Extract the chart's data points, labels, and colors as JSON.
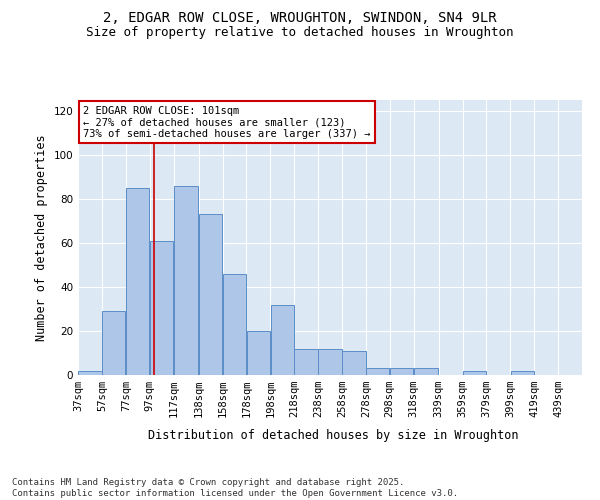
{
  "title_line1": "2, EDGAR ROW CLOSE, WROUGHTON, SWINDON, SN4 9LR",
  "title_line2": "Size of property relative to detached houses in Wroughton",
  "xlabel": "Distribution of detached houses by size in Wroughton",
  "ylabel": "Number of detached properties",
  "bar_left_edges": [
    37,
    57,
    77,
    97,
    117,
    138,
    158,
    178,
    198,
    218,
    238,
    258,
    278,
    298,
    318,
    339,
    359,
    379,
    399,
    419
  ],
  "bar_widths": [
    20,
    20,
    20,
    20,
    21,
    20,
    20,
    20,
    20,
    20,
    20,
    20,
    20,
    20,
    21,
    20,
    20,
    20,
    20,
    20
  ],
  "bar_heights": [
    2,
    29,
    85,
    61,
    86,
    73,
    46,
    20,
    32,
    12,
    12,
    11,
    3,
    3,
    3,
    0,
    2,
    0,
    2,
    0
  ],
  "bar_color": "#aec6e8",
  "bar_edgecolor": "#5b8dc8",
  "x_tick_labels": [
    "37sqm",
    "57sqm",
    "77sqm",
    "97sqm",
    "117sqm",
    "138sqm",
    "158sqm",
    "178sqm",
    "198sqm",
    "218sqm",
    "238sqm",
    "258sqm",
    "278sqm",
    "298sqm",
    "318sqm",
    "339sqm",
    "359sqm",
    "379sqm",
    "399sqm",
    "419sqm",
    "439sqm"
  ],
  "ylim": [
    0,
    125
  ],
  "yticks": [
    0,
    20,
    40,
    60,
    80,
    100,
    120
  ],
  "vline_x": 101,
  "vline_color": "#cc0000",
  "annotation_text": "2 EDGAR ROW CLOSE: 101sqm\n← 27% of detached houses are smaller (123)\n73% of semi-detached houses are larger (337) →",
  "background_color": "#dce9f5",
  "grid_color": "#ffffff",
  "fig_background": "#ffffff",
  "footer_text": "Contains HM Land Registry data © Crown copyright and database right 2025.\nContains public sector information licensed under the Open Government Licence v3.0.",
  "title_fontsize": 10,
  "subtitle_fontsize": 9,
  "axis_label_fontsize": 8.5,
  "tick_fontsize": 7.5,
  "annotation_fontsize": 7.5,
  "footer_fontsize": 6.5
}
